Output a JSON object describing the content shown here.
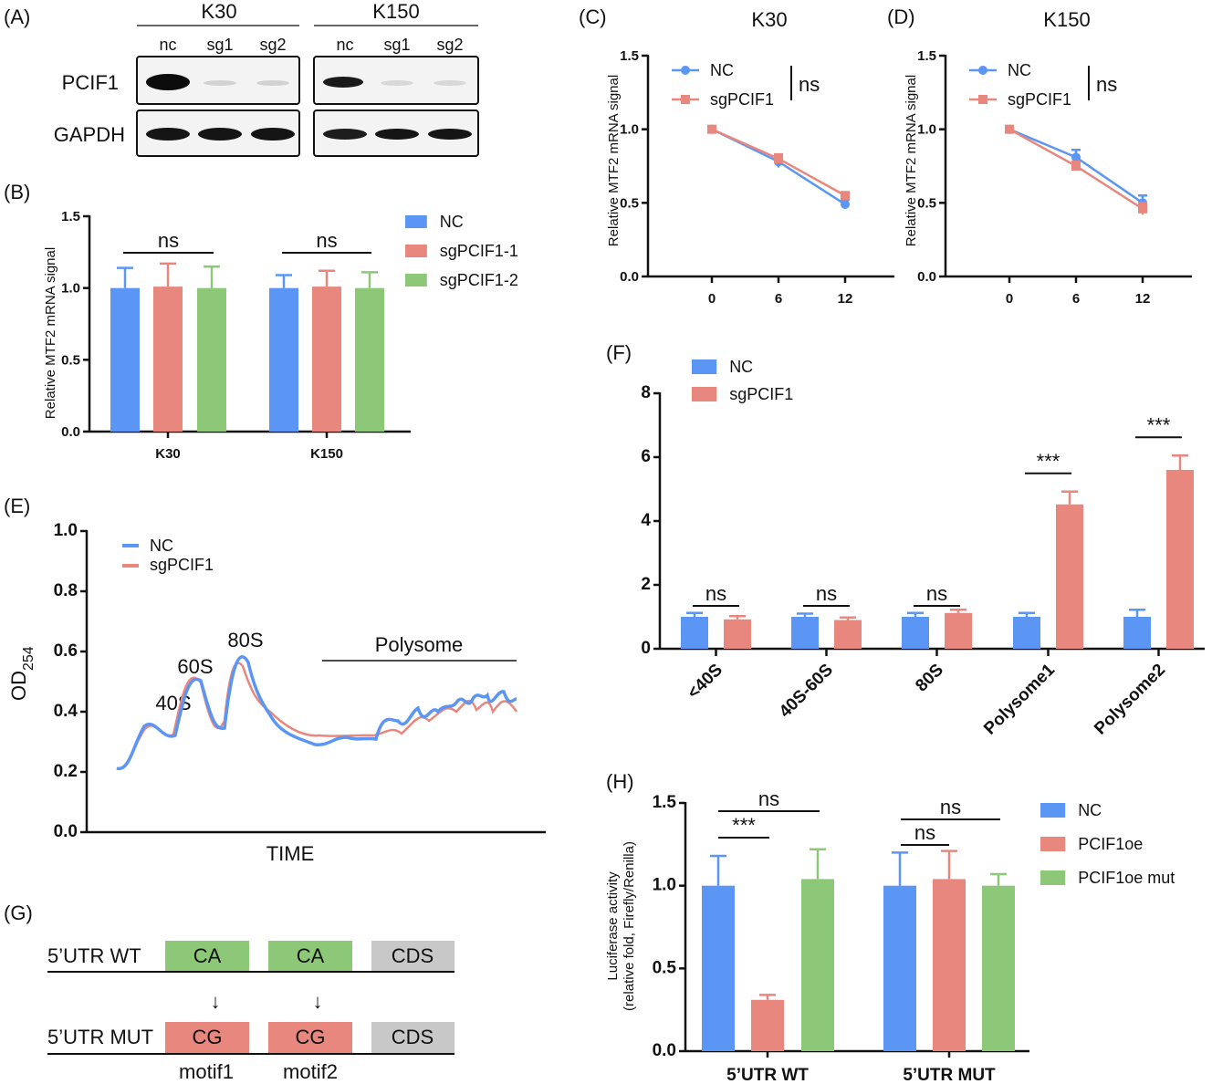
{
  "panels": {
    "A": "(A)",
    "B": "(B)",
    "C": "(C)",
    "D": "(D)",
    "E": "(E)",
    "F": "(F)",
    "G": "(G)",
    "H": "(H)"
  },
  "colors": {
    "nc": "#5b96f5",
    "sg": "#e8877e",
    "green": "#8cc878",
    "cds": "#c8c8c8"
  },
  "blot": {
    "groups": [
      "K30",
      "K150"
    ],
    "lanes": [
      "nc",
      "sg1",
      "sg2",
      "nc",
      "sg1",
      "sg2"
    ],
    "rows": [
      "PCIF1",
      "GAPDH"
    ]
  },
  "chart_data": [
    {
      "panel": "B",
      "type": "bar",
      "ylabel": "Relative MTF2 mRNA signal",
      "ylim": [
        0,
        1.5
      ],
      "yticks": [
        "0.0",
        "0.5",
        "1.0",
        "1.5"
      ],
      "categories": [
        "K30",
        "K150"
      ],
      "series": [
        {
          "name": "NC",
          "values": [
            1.0,
            1.0
          ],
          "errors": [
            0.14,
            0.09
          ]
        },
        {
          "name": "sgPCIF1-1",
          "values": [
            1.01,
            1.01
          ],
          "errors": [
            0.16,
            0.11
          ]
        },
        {
          "name": "sgPCIF1-2",
          "values": [
            1.0,
            1.0
          ],
          "errors": [
            0.15,
            0.11
          ]
        }
      ],
      "annotations": [
        "ns",
        "ns"
      ]
    },
    {
      "panel": "C",
      "type": "line",
      "title": "K30",
      "ylabel": "Relative MTF2 mRNA signal",
      "ylim": [
        0,
        1.5
      ],
      "yticks": [
        "0.0",
        "0.5",
        "1.0",
        "1.5"
      ],
      "x": [
        "0",
        "6",
        "12"
      ],
      "series": [
        {
          "name": "NC",
          "values": [
            1.0,
            0.78,
            0.49
          ],
          "errors": [
            0.01,
            0.04,
            0.03
          ]
        },
        {
          "name": "sgPCIF1",
          "values": [
            1.0,
            0.8,
            0.55
          ],
          "errors": [
            0.01,
            0.03,
            0.02
          ]
        }
      ],
      "annotation": "ns"
    },
    {
      "panel": "D",
      "type": "line",
      "title": "K150",
      "ylabel": "Relative MTF2 mRNA signal",
      "ylim": [
        0,
        1.5
      ],
      "yticks": [
        "0.0",
        "0.5",
        "1.0",
        "1.5"
      ],
      "x": [
        "0",
        "6",
        "12"
      ],
      "series": [
        {
          "name": "NC",
          "values": [
            1.0,
            0.81,
            0.5
          ],
          "errors": [
            0.01,
            0.05,
            0.05
          ]
        },
        {
          "name": "sgPCIF1",
          "values": [
            1.0,
            0.75,
            0.46
          ],
          "errors": [
            0.01,
            0.03,
            0.04
          ]
        }
      ],
      "annotation": "ns"
    },
    {
      "panel": "E",
      "type": "line",
      "xlabel": "TIME",
      "ylabel": "OD",
      "ylabel_sub": "254",
      "ylim": [
        0,
        1.0
      ],
      "yticks": [
        "0.0",
        "0.2",
        "0.4",
        "0.6",
        "0.8",
        "1.0"
      ],
      "legend": [
        "NC",
        "sgPCIF1"
      ],
      "peak_labels": [
        "40S",
        "60S",
        "80S"
      ],
      "region_label": "Polysome"
    },
    {
      "panel": "F",
      "type": "bar",
      "ylim": [
        0,
        8
      ],
      "yticks": [
        "0",
        "2",
        "4",
        "6",
        "8"
      ],
      "categories": [
        "<40S",
        "40S-60S",
        "80S",
        "Polysome1",
        "Polysome2"
      ],
      "series": [
        {
          "name": "NC",
          "values": [
            1.0,
            1.0,
            1.0,
            1.0,
            1.0
          ],
          "errors": [
            0.12,
            0.1,
            0.12,
            0.12,
            0.22
          ]
        },
        {
          "name": "sgPCIF1",
          "values": [
            0.92,
            0.9,
            1.12,
            4.52,
            5.6
          ],
          "errors": [
            0.1,
            0.08,
            0.1,
            0.4,
            0.45
          ]
        }
      ],
      "annotations": [
        "ns",
        "ns",
        "ns",
        "***",
        "***"
      ]
    },
    {
      "panel": "H",
      "type": "bar",
      "ylabel": "Luciferase activity",
      "ylabel2": "(relative fold, Firefly/Renilla)",
      "ylim": [
        0,
        1.5
      ],
      "yticks": [
        "0.0",
        "0.5",
        "1.0",
        "1.5"
      ],
      "categories": [
        "5’UTR WT",
        "5’UTR MUT"
      ],
      "series": [
        {
          "name": "NC",
          "values": [
            1.0,
            1.0
          ],
          "errors": [
            0.18,
            0.2
          ]
        },
        {
          "name": "PCIF1oe",
          "values": [
            0.31,
            1.04
          ],
          "errors": [
            0.03,
            0.17
          ]
        },
        {
          "name": "PCIF1oe mut",
          "values": [
            1.04,
            1.0
          ],
          "errors": [
            0.18,
            0.07
          ]
        }
      ],
      "annotations": [
        "***",
        "ns",
        "ns",
        "ns"
      ]
    }
  ],
  "schematic": {
    "rows": [
      {
        "label": "5’UTR WT",
        "boxes": [
          "CA",
          "CA",
          "CDS"
        ]
      },
      {
        "label": "5’UTR MUT",
        "boxes": [
          "CG",
          "CG",
          "CDS"
        ]
      }
    ],
    "arrows": [
      "↓",
      "↓"
    ],
    "motifs": [
      "motif1",
      "motif2"
    ]
  }
}
